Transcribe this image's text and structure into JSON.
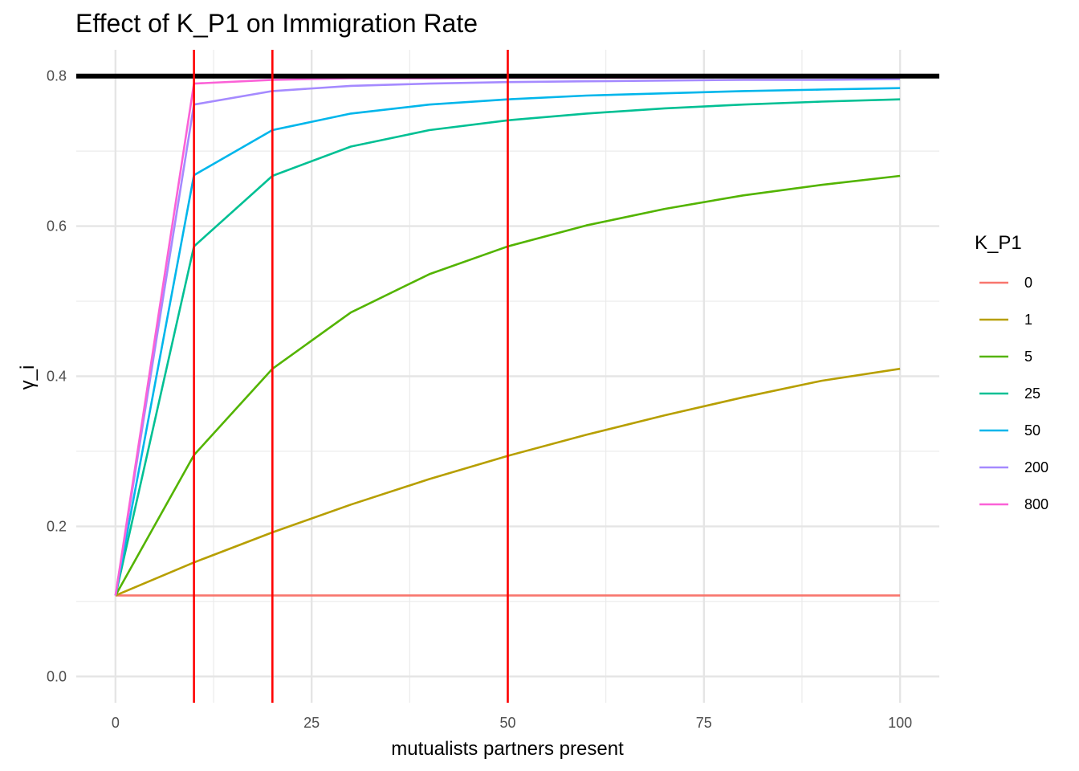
{
  "chart_data": {
    "type": "line",
    "title": "Effect of K_P1 on Immigration Rate",
    "xlabel": "mutualists partners present",
    "ylabel": "γ_i",
    "xlim": [
      -5,
      105
    ],
    "ylim": [
      -0.035,
      0.835
    ],
    "x_ticks": [
      0,
      25,
      50,
      75,
      100
    ],
    "x_tick_labels": [
      "0",
      "25",
      "50",
      "75",
      "100"
    ],
    "y_ticks": [
      0.0,
      0.2,
      0.4,
      0.6,
      0.8
    ],
    "y_tick_labels": [
      "0.0",
      "0.2",
      "0.4",
      "0.6",
      "0.8"
    ],
    "grid": true,
    "legend": {
      "title": "K_P1",
      "position": "right"
    },
    "x": [
      0,
      10,
      20,
      30,
      40,
      50,
      60,
      70,
      80,
      90,
      100
    ],
    "series": [
      {
        "name": "0",
        "color": "#F8766D",
        "values": [
          0.108,
          0.108,
          0.108,
          0.108,
          0.108,
          0.108,
          0.108,
          0.108,
          0.108,
          0.108,
          0.108
        ]
      },
      {
        "name": "1",
        "color": "#B79F00",
        "values": [
          0.108,
          0.152,
          0.192,
          0.229,
          0.263,
          0.294,
          0.322,
          0.348,
          0.372,
          0.394,
          0.41
        ]
      },
      {
        "name": "5",
        "color": "#53B400",
        "values": [
          0.108,
          0.295,
          0.41,
          0.485,
          0.536,
          0.573,
          0.601,
          0.623,
          0.641,
          0.655,
          0.667
        ]
      },
      {
        "name": "25",
        "color": "#00C094",
        "values": [
          0.108,
          0.573,
          0.667,
          0.706,
          0.728,
          0.741,
          0.75,
          0.757,
          0.762,
          0.766,
          0.769
        ]
      },
      {
        "name": "50",
        "color": "#00B6EB",
        "values": [
          0.108,
          0.668,
          0.728,
          0.75,
          0.762,
          0.769,
          0.774,
          0.777,
          0.78,
          0.782,
          0.784
        ]
      },
      {
        "name": "200",
        "color": "#A58AFF",
        "values": [
          0.108,
          0.762,
          0.78,
          0.787,
          0.79,
          0.792,
          0.793,
          0.794,
          0.795,
          0.795,
          0.796
        ]
      },
      {
        "name": "800",
        "color": "#FB61D7",
        "values": [
          0.108,
          0.79,
          0.795,
          0.797,
          0.797,
          0.798,
          0.798,
          0.798,
          0.799,
          0.799,
          0.799
        ]
      }
    ],
    "hlines": [
      {
        "y": 0.8,
        "color": "#000000"
      }
    ],
    "vlines": [
      {
        "x": 10,
        "color": "#FF0000"
      },
      {
        "x": 20,
        "color": "#FF0000"
      },
      {
        "x": 50,
        "color": "#FF0000"
      }
    ]
  }
}
